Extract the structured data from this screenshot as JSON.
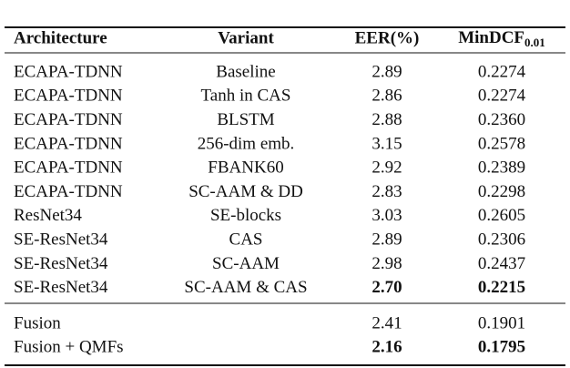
{
  "table": {
    "header": [
      "Architecture",
      "Variant",
      "EER(%)",
      {
        "text": "MinDCF",
        "sub": "0.01"
      }
    ],
    "groups": [
      [
        [
          "ECAPA-TDNN",
          "Baseline",
          "2.89",
          "0.2274"
        ],
        [
          "ECAPA-TDNN",
          "Tanh in CAS",
          "2.86",
          "0.2274"
        ],
        [
          "ECAPA-TDNN",
          "BLSTM",
          "2.88",
          "0.2360"
        ],
        [
          "ECAPA-TDNN",
          "256-dim emb.",
          "3.15",
          "0.2578"
        ],
        [
          "ECAPA-TDNN",
          "FBANK60",
          "2.92",
          "0.2389"
        ],
        [
          "ECAPA-TDNN",
          "SC-AAM & DD",
          "2.83",
          "0.2298"
        ],
        [
          "ResNet34",
          "SE-blocks",
          "3.03",
          "0.2605"
        ],
        [
          "SE-ResNet34",
          "CAS",
          "2.89",
          "0.2306"
        ],
        [
          "SE-ResNet34",
          "SC-AAM",
          "2.98",
          "0.2437"
        ],
        [
          "SE-ResNet34",
          "SC-AAM & CAS",
          "2.70",
          "0.2215"
        ]
      ],
      [
        [
          "Fusion",
          "",
          "2.41",
          "0.1901"
        ],
        [
          "Fusion + QMFs",
          "",
          "2.16",
          "0.1795"
        ]
      ]
    ]
  }
}
